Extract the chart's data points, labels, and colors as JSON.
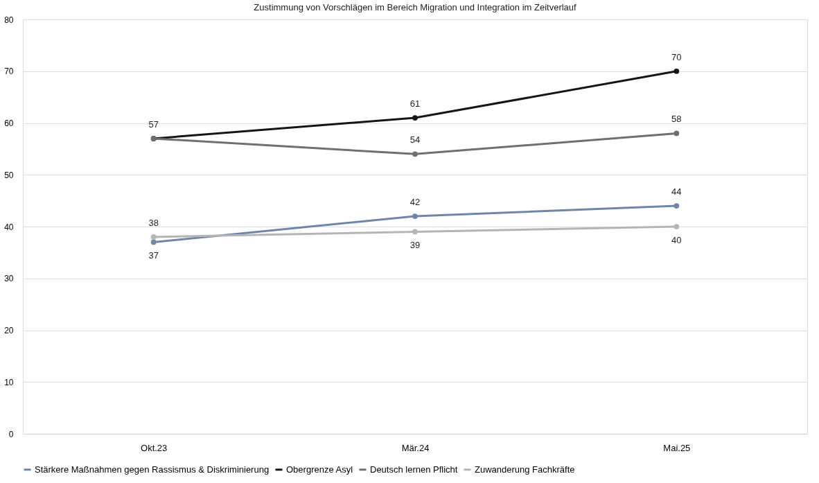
{
  "chart_data": {
    "type": "line",
    "title": "Zustimmung von Vorschlägen im Bereich Migration und Integration im Zeitverlauf",
    "categories": [
      "Okt.23",
      "Mär.24",
      "Mai.25"
    ],
    "series": [
      {
        "name": "Stärkere Maßnahmen gegen Rassismus & Diskriminierung",
        "color": "#6f86a8",
        "values": [
          37,
          42,
          44
        ],
        "value_labels": [
          "37",
          "42",
          "44"
        ]
      },
      {
        "name": "Obergrenze Asyl",
        "color": "#161616",
        "values": [
          57,
          61,
          70
        ],
        "value_labels": [
          "57",
          "61",
          "70"
        ]
      },
      {
        "name": "Deutsch lernen Pflicht",
        "color": "#707070",
        "values": [
          57,
          54,
          58
        ],
        "value_labels": [
          null,
          "54",
          "58"
        ]
      },
      {
        "name": "Zuwanderung Fachkräfte",
        "color": "#b5b5b5",
        "values": [
          38,
          39,
          40
        ],
        "value_labels": [
          "38",
          "39",
          "40"
        ]
      }
    ],
    "ylim": [
      0,
      80
    ],
    "yticks": [
      0,
      10,
      20,
      30,
      40,
      50,
      60,
      70,
      80
    ],
    "grid": "y",
    "legend": "bottom",
    "marker": "circle",
    "line_style": "solid"
  }
}
